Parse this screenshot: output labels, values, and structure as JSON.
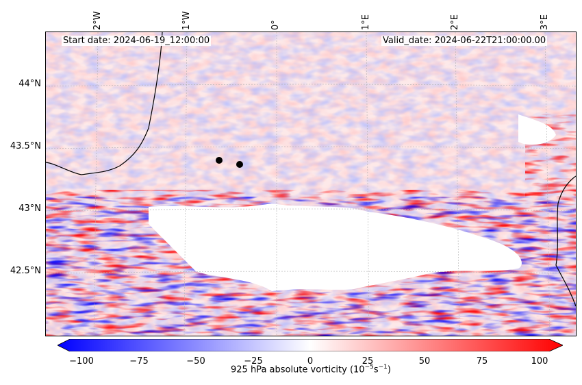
{
  "header": {
    "start_date": "Start date: 2024-06-19_12:00:00",
    "valid_date": "Valid_date: 2024-06-22T21:00:00.00"
  },
  "map": {
    "longitude_labels": [
      "2°W",
      "1°W",
      "0°",
      "1°E",
      "2°E",
      "3°E"
    ],
    "latitude_labels": [
      "44°N",
      "43.5°N",
      "43°N",
      "42.5°N"
    ],
    "markers_count": 2
  },
  "colorbar": {
    "ticks": [
      "−100",
      "−75",
      "−50",
      "−25",
      "0",
      "25",
      "50",
      "75",
      "100"
    ],
    "min": -100,
    "max": 100,
    "label_prefix": "925 hPa absolute vorticity (10",
    "label_exp1": "−5",
    "label_mid": "s",
    "label_exp2": "−1",
    "label_suffix": ")",
    "colors": {
      "low": "#0000ff",
      "mid": "#ffffff",
      "high": "#ff0000"
    }
  }
}
